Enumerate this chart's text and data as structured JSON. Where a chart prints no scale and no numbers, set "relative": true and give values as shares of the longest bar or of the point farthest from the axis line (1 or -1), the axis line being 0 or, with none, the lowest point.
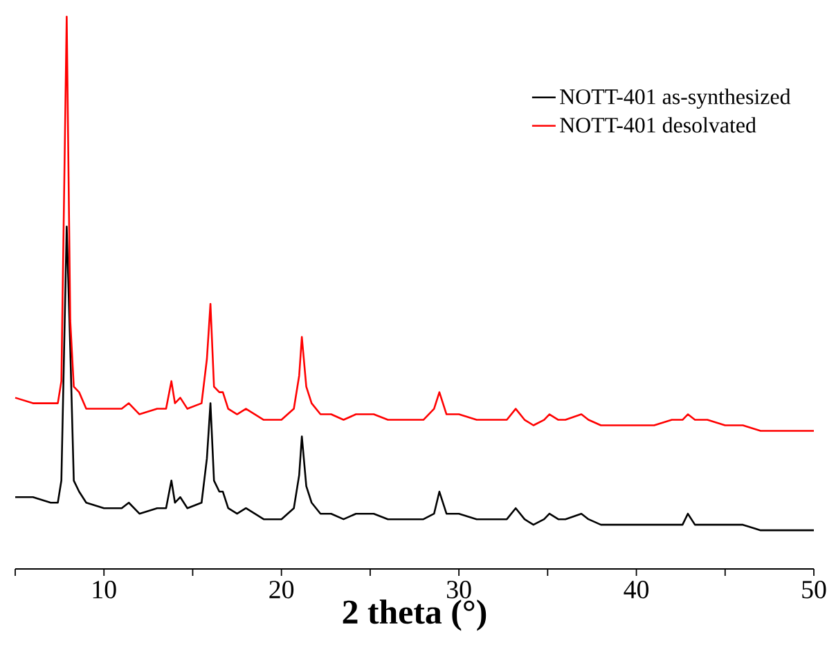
{
  "chart_data": {
    "type": "line",
    "xlabel": "2 theta (°)",
    "relative": true,
    "legend": "top right",
    "marker": "none",
    "line_style": "solid",
    "grid": false,
    "tick_labels": "x",
    "xlim": [
      5,
      50
    ],
    "xticks": [
      {
        "value": 5,
        "label": null
      },
      10,
      {
        "value": 15,
        "label": null
      },
      20,
      {
        "value": 25,
        "label": null
      },
      30,
      {
        "value": 35,
        "label": null
      },
      40,
      {
        "value": 45,
        "label": null
      },
      50
    ],
    "x": [
      5,
      6,
      7,
      7.4,
      7.6,
      7.9,
      8.1,
      8.3,
      8.6,
      9,
      10,
      11,
      11.4,
      12,
      13,
      13.5,
      13.8,
      14.0,
      14.3,
      14.7,
      15.5,
      15.8,
      16.0,
      16.2,
      16.5,
      16.7,
      17,
      17.5,
      18,
      18.5,
      19,
      20,
      20.7,
      21.0,
      21.15,
      21.4,
      21.7,
      22.2,
      22.8,
      23.5,
      24.2,
      24.7,
      25.2,
      26,
      27,
      28,
      28.6,
      28.9,
      29.3,
      30,
      31,
      32,
      32.7,
      33.2,
      33.7,
      34.2,
      34.8,
      35.1,
      35.6,
      36,
      36.9,
      37.3,
      38,
      39,
      40,
      41,
      42,
      42.6,
      42.9,
      43.3,
      44,
      45,
      46,
      47,
      48,
      49,
      50
    ],
    "series": [
      {
        "name": "NOTT-401 as-synthesized",
        "color": "#000000",
        "values": [
          0.13,
          0.13,
          0.12,
          0.12,
          0.16,
          0.62,
          0.4,
          0.16,
          0.14,
          0.12,
          0.11,
          0.11,
          0.12,
          0.1,
          0.11,
          0.11,
          0.16,
          0.12,
          0.13,
          0.11,
          0.12,
          0.2,
          0.3,
          0.16,
          0.14,
          0.14,
          0.11,
          0.1,
          0.11,
          0.1,
          0.09,
          0.09,
          0.11,
          0.17,
          0.24,
          0.15,
          0.12,
          0.1,
          0.1,
          0.09,
          0.1,
          0.1,
          0.1,
          0.09,
          0.09,
          0.09,
          0.1,
          0.14,
          0.1,
          0.1,
          0.09,
          0.09,
          0.09,
          0.11,
          0.09,
          0.08,
          0.09,
          0.1,
          0.09,
          0.09,
          0.1,
          0.09,
          0.08,
          0.08,
          0.08,
          0.08,
          0.08,
          0.08,
          0.1,
          0.08,
          0.08,
          0.08,
          0.08,
          0.07,
          0.07,
          0.07,
          0.07
        ]
      },
      {
        "name": "NOTT-401 desolvated",
        "color": "#ff0000",
        "values": [
          0.31,
          0.3,
          0.3,
          0.3,
          0.34,
          1.0,
          0.45,
          0.33,
          0.32,
          0.29,
          0.29,
          0.29,
          0.3,
          0.28,
          0.29,
          0.29,
          0.34,
          0.3,
          0.31,
          0.29,
          0.3,
          0.38,
          0.48,
          0.33,
          0.32,
          0.32,
          0.29,
          0.28,
          0.29,
          0.28,
          0.27,
          0.27,
          0.29,
          0.35,
          0.42,
          0.33,
          0.3,
          0.28,
          0.28,
          0.27,
          0.28,
          0.28,
          0.28,
          0.27,
          0.27,
          0.27,
          0.29,
          0.32,
          0.28,
          0.28,
          0.27,
          0.27,
          0.27,
          0.29,
          0.27,
          0.26,
          0.27,
          0.28,
          0.27,
          0.27,
          0.28,
          0.27,
          0.26,
          0.26,
          0.26,
          0.26,
          0.27,
          0.27,
          0.28,
          0.27,
          0.27,
          0.26,
          0.26,
          0.25,
          0.25,
          0.25,
          0.25
        ]
      }
    ]
  }
}
